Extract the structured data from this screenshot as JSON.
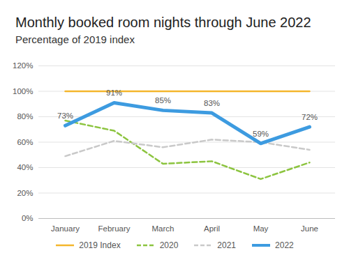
{
  "chart_data": {
    "type": "line",
    "title": "Monthly booked room nights through June 2022",
    "subtitle": "Percentage of 2019 index",
    "categories": [
      "January",
      "February",
      "March",
      "April",
      "May",
      "June"
    ],
    "series": [
      {
        "name": "2019 Index",
        "color": "#f4b62c",
        "line_style": "solid",
        "values": [
          100,
          100,
          100,
          100,
          100,
          100
        ]
      },
      {
        "name": "2020",
        "color": "#8cc43f",
        "line_style": "dashed",
        "values": [
          77,
          69,
          43,
          45,
          31,
          44
        ]
      },
      {
        "name": "2021",
        "color": "#c9c9c9",
        "line_style": "dashed",
        "values": [
          49,
          61,
          56,
          62,
          60,
          54
        ]
      },
      {
        "name": "2022",
        "color": "#3d9be0",
        "line_style": "solid",
        "values": [
          73,
          91,
          85,
          83,
          59,
          72
        ],
        "data_labels": true,
        "value_labels": [
          "73%",
          "91%",
          "85%",
          "83%",
          "59%",
          "72%"
        ]
      }
    ],
    "ylim": [
      0,
      120
    ],
    "yticks": [
      {
        "value": 0,
        "label": "0%"
      },
      {
        "value": 20,
        "label": "20%"
      },
      {
        "value": 40,
        "label": "40%"
      },
      {
        "value": 60,
        "label": "60%"
      },
      {
        "value": 80,
        "label": "80%"
      },
      {
        "value": 100,
        "label": "100%"
      },
      {
        "value": 120,
        "label": "120%"
      }
    ],
    "grid": true,
    "legend": "bottom"
  }
}
